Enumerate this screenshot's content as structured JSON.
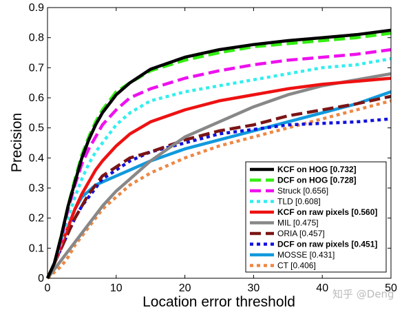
{
  "chart_data": {
    "type": "line",
    "title": "",
    "xlabel": "Location error threshold",
    "ylabel": "Precision",
    "xlim": [
      0,
      50
    ],
    "ylim": [
      0,
      0.9
    ],
    "xticks": [
      "0",
      "10",
      "20",
      "30",
      "40",
      "50"
    ],
    "yticks": [
      "0",
      "0.1",
      "0.2",
      "0.3",
      "0.4",
      "0.5",
      "0.6",
      "0.7",
      "0.8",
      "0.9"
    ],
    "grid": false,
    "legend_position": "bottom-right",
    "x": [
      0,
      1,
      2,
      3,
      4,
      5,
      6,
      7,
      8,
      10,
      12,
      15,
      20,
      25,
      30,
      35,
      40,
      45,
      50
    ],
    "series": [
      {
        "name": "KCF on HOG [0.732]",
        "bold": true,
        "color": "#000000",
        "dash": "solid",
        "values": [
          0.0,
          0.05,
          0.14,
          0.24,
          0.32,
          0.4,
          0.46,
          0.51,
          0.55,
          0.61,
          0.65,
          0.695,
          0.735,
          0.76,
          0.777,
          0.79,
          0.8,
          0.81,
          0.825
        ]
      },
      {
        "name": "DCF on HOG [0.728]",
        "bold": true,
        "color": "#33ee11",
        "dash": "dashed",
        "values": [
          0.0,
          0.05,
          0.14,
          0.24,
          0.33,
          0.41,
          0.47,
          0.52,
          0.56,
          0.62,
          0.65,
          0.69,
          0.725,
          0.75,
          0.77,
          0.78,
          0.79,
          0.8,
          0.815
        ]
      },
      {
        "name": "Struck [0.656]",
        "bold": false,
        "color": "#ee11ee",
        "dash": "dashed",
        "values": [
          0.0,
          0.05,
          0.13,
          0.23,
          0.31,
          0.38,
          0.43,
          0.47,
          0.51,
          0.56,
          0.6,
          0.63,
          0.665,
          0.69,
          0.71,
          0.725,
          0.735,
          0.745,
          0.76
        ]
      },
      {
        "name": "TLD [0.608]",
        "bold": false,
        "color": "#33eeee",
        "dash": "dotted",
        "values": [
          0.0,
          0.05,
          0.12,
          0.2,
          0.27,
          0.33,
          0.38,
          0.42,
          0.45,
          0.51,
          0.55,
          0.59,
          0.62,
          0.64,
          0.66,
          0.68,
          0.7,
          0.71,
          0.73
        ]
      },
      {
        "name": "KCF on raw pixels [0.560]",
        "bold": true,
        "color": "#ee1111",
        "dash": "solid",
        "values": [
          0.0,
          0.05,
          0.11,
          0.17,
          0.23,
          0.28,
          0.32,
          0.36,
          0.39,
          0.44,
          0.48,
          0.52,
          0.56,
          0.59,
          0.61,
          0.63,
          0.645,
          0.655,
          0.665
        ]
      },
      {
        "name": "MIL [0.475]",
        "bold": false,
        "color": "#888888",
        "dash": "solid",
        "values": [
          0.0,
          0.03,
          0.06,
          0.09,
          0.12,
          0.15,
          0.18,
          0.21,
          0.24,
          0.29,
          0.33,
          0.39,
          0.47,
          0.52,
          0.57,
          0.61,
          0.64,
          0.66,
          0.68
        ]
      },
      {
        "name": "ORIA [0.457]",
        "bold": false,
        "color": "#7a1515",
        "dash": "dashed",
        "values": [
          0.0,
          0.05,
          0.1,
          0.15,
          0.2,
          0.24,
          0.28,
          0.31,
          0.34,
          0.37,
          0.4,
          0.42,
          0.46,
          0.49,
          0.51,
          0.54,
          0.56,
          0.58,
          0.605
        ]
      },
      {
        "name": "DCF on raw pixels [0.451]",
        "bold": true,
        "color": "#1111dd",
        "dash": "dotted",
        "values": [
          0.0,
          0.05,
          0.1,
          0.15,
          0.2,
          0.24,
          0.27,
          0.3,
          0.33,
          0.36,
          0.39,
          0.42,
          0.45,
          0.48,
          0.495,
          0.51,
          0.515,
          0.52,
          0.53
        ]
      },
      {
        "name": "MOSSE [0.431]",
        "bold": false,
        "color": "#1199dd",
        "dash": "solid",
        "values": [
          0.0,
          0.05,
          0.11,
          0.17,
          0.23,
          0.27,
          0.29,
          0.31,
          0.32,
          0.34,
          0.36,
          0.39,
          0.43,
          0.46,
          0.49,
          0.52,
          0.55,
          0.58,
          0.62
        ]
      },
      {
        "name": "CT [0.406]",
        "bold": false,
        "color": "#ee8844",
        "dash": "dotted",
        "values": [
          0.0,
          0.02,
          0.04,
          0.07,
          0.11,
          0.14,
          0.17,
          0.2,
          0.23,
          0.27,
          0.31,
          0.35,
          0.4,
          0.44,
          0.47,
          0.5,
          0.53,
          0.56,
          0.59
        ]
      }
    ]
  },
  "watermark": "知乎 @Deng"
}
